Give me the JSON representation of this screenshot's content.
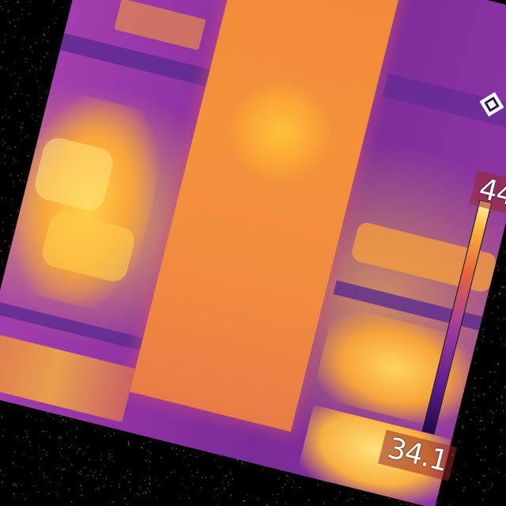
{
  "scale": {
    "max_label": "44",
    "min_label": "34.1"
  },
  "icons": {
    "logo": "camera-logo-icon"
  },
  "colors": {
    "background": "#000000",
    "cool": "#5b1d8f",
    "mid": "#a23aa0",
    "warm": "#f08a3a",
    "hot": "#fff6a5"
  }
}
